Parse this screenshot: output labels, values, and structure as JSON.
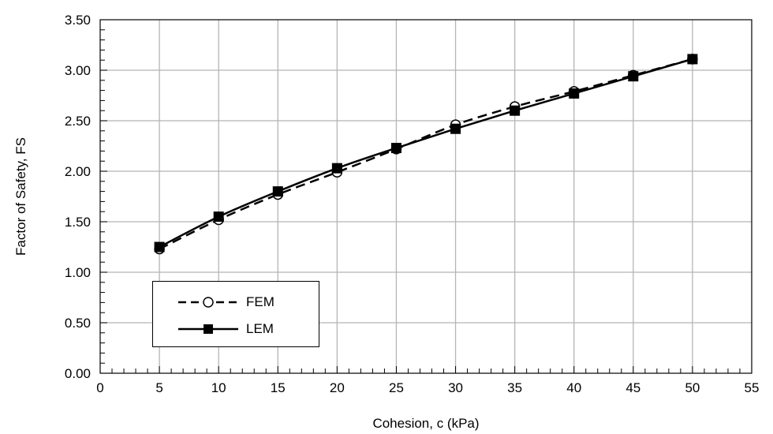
{
  "chart_data": {
    "type": "line",
    "xlabel": "Cohesion, c (kPa)",
    "ylabel": "Factor of Safety, FS",
    "xlim": [
      0,
      55
    ],
    "ylim": [
      0,
      3.5
    ],
    "x_ticks": [
      "0",
      "5",
      "10",
      "15",
      "20",
      "25",
      "30",
      "35",
      "40",
      "45",
      "50",
      "55"
    ],
    "y_ticks": [
      "0.00",
      "0.50",
      "1.00",
      "1.50",
      "2.00",
      "2.50",
      "3.00",
      "3.50"
    ],
    "grid": true,
    "legend_position": "bottom-left",
    "x": [
      5,
      10,
      15,
      20,
      25,
      30,
      35,
      40,
      45,
      50
    ],
    "series": [
      {
        "name": "FEM",
        "marker": "open-circle",
        "line": "dashed",
        "values": [
          1.23,
          1.52,
          1.77,
          1.99,
          2.22,
          2.46,
          2.64,
          2.79,
          2.95,
          3.11
        ]
      },
      {
        "name": "LEM",
        "marker": "filled-square",
        "line": "solid",
        "values": [
          1.25,
          1.55,
          1.8,
          2.03,
          2.23,
          2.42,
          2.6,
          2.77,
          2.94,
          3.11
        ]
      }
    ]
  }
}
